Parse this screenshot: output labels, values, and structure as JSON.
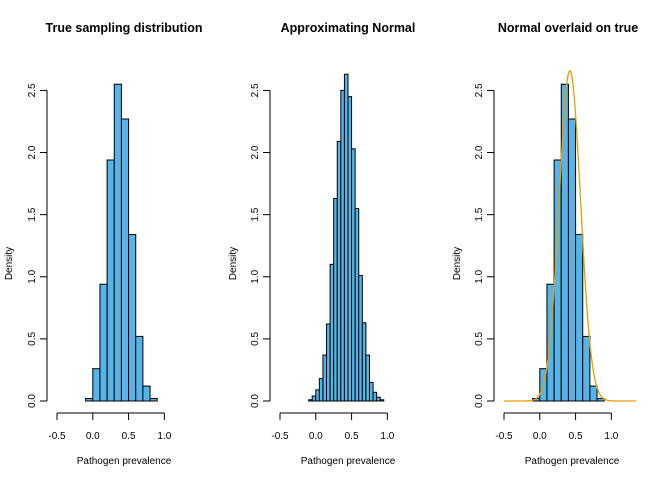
{
  "chart_data": [
    {
      "type": "bar",
      "title": "True sampling distribution",
      "xlabel": "Pathogen prevalence",
      "ylabel": "Density",
      "xlim": [
        -0.5,
        1.4
      ],
      "ylim": [
        0,
        2.6
      ],
      "xticks": [
        -0.5,
        0.0,
        0.5,
        1.0
      ],
      "xtick_labels": [
        "-0.5",
        "0.0",
        "0.5",
        "1.0"
      ],
      "yticks": [
        0.0,
        0.5,
        1.0,
        1.5,
        2.0,
        2.5
      ],
      "ytick_labels": [
        "0.0",
        "0.5",
        "1.0",
        "1.5",
        "2.0",
        "2.5"
      ],
      "grid": false,
      "bar_color": "#56B4E9",
      "bins": [
        {
          "x0": -0.1,
          "x1": 0.0,
          "density": 0.02
        },
        {
          "x0": 0.0,
          "x1": 0.1,
          "density": 0.26
        },
        {
          "x0": 0.1,
          "x1": 0.2,
          "density": 0.94
        },
        {
          "x0": 0.2,
          "x1": 0.3,
          "density": 1.94
        },
        {
          "x0": 0.3,
          "x1": 0.4,
          "density": 2.55
        },
        {
          "x0": 0.4,
          "x1": 0.5,
          "density": 2.27
        },
        {
          "x0": 0.5,
          "x1": 0.6,
          "density": 1.34
        },
        {
          "x0": 0.6,
          "x1": 0.7,
          "density": 0.52
        },
        {
          "x0": 0.7,
          "x1": 0.8,
          "density": 0.12
        },
        {
          "x0": 0.8,
          "x1": 0.9,
          "density": 0.02
        }
      ]
    },
    {
      "type": "bar",
      "title": "Approximating Normal",
      "xlabel": "Pathogen prevalence",
      "ylabel": "Density",
      "xlim": [
        -0.5,
        1.4
      ],
      "ylim": [
        0,
        2.6
      ],
      "xticks": [
        -0.5,
        0.0,
        0.5,
        1.0
      ],
      "xtick_labels": [
        "-0.5",
        "0.0",
        "0.5",
        "1.0"
      ],
      "yticks": [
        0.0,
        0.5,
        1.0,
        1.5,
        2.0,
        2.5
      ],
      "ytick_labels": [
        "0.0",
        "0.5",
        "1.0",
        "1.5",
        "2.0",
        "2.5"
      ],
      "grid": false,
      "bar_color": "#56B4E9",
      "bins": [
        {
          "x0": -0.1,
          "x1": -0.05,
          "density": 0.01
        },
        {
          "x0": -0.05,
          "x1": 0.0,
          "density": 0.04
        },
        {
          "x0": 0.0,
          "x1": 0.05,
          "density": 0.09
        },
        {
          "x0": 0.05,
          "x1": 0.1,
          "density": 0.18
        },
        {
          "x0": 0.1,
          "x1": 0.15,
          "density": 0.37
        },
        {
          "x0": 0.15,
          "x1": 0.2,
          "density": 0.62
        },
        {
          "x0": 0.2,
          "x1": 0.25,
          "density": 1.1
        },
        {
          "x0": 0.25,
          "x1": 0.3,
          "density": 1.63
        },
        {
          "x0": 0.3,
          "x1": 0.35,
          "density": 2.09
        },
        {
          "x0": 0.35,
          "x1": 0.4,
          "density": 2.5
        },
        {
          "x0": 0.4,
          "x1": 0.45,
          "density": 2.63
        },
        {
          "x0": 0.45,
          "x1": 0.5,
          "density": 2.45
        },
        {
          "x0": 0.5,
          "x1": 0.55,
          "density": 2.03
        },
        {
          "x0": 0.55,
          "x1": 0.6,
          "density": 1.55
        },
        {
          "x0": 0.6,
          "x1": 0.65,
          "density": 1.01
        },
        {
          "x0": 0.65,
          "x1": 0.7,
          "density": 0.63
        },
        {
          "x0": 0.7,
          "x1": 0.75,
          "density": 0.37
        },
        {
          "x0": 0.75,
          "x1": 0.8,
          "density": 0.15
        },
        {
          "x0": 0.8,
          "x1": 0.85,
          "density": 0.07
        },
        {
          "x0": 0.85,
          "x1": 0.9,
          "density": 0.03
        },
        {
          "x0": 0.9,
          "x1": 0.95,
          "density": 0.01
        }
      ]
    },
    {
      "type": "bar",
      "title": "Normal overlaid on true",
      "xlabel": "Pathogen prevalence",
      "ylabel": "Density",
      "xlim": [
        -0.5,
        1.4
      ],
      "ylim": [
        0,
        2.6
      ],
      "xticks": [
        -0.5,
        0.0,
        0.5,
        1.0
      ],
      "xtick_labels": [
        "-0.5",
        "0.0",
        "0.5",
        "1.0"
      ],
      "yticks": [
        0.0,
        0.5,
        1.0,
        1.5,
        2.0,
        2.5
      ],
      "ytick_labels": [
        "0.0",
        "0.5",
        "1.0",
        "1.5",
        "2.0",
        "2.5"
      ],
      "grid": false,
      "bar_color": "#56B4E9",
      "curve_color": "#E69F00",
      "curve": {
        "mean": 0.42,
        "sd": 0.15,
        "x_from": -0.5,
        "x_to": 1.35
      },
      "bins": [
        {
          "x0": -0.1,
          "x1": 0.0,
          "density": 0.02
        },
        {
          "x0": 0.0,
          "x1": 0.1,
          "density": 0.26
        },
        {
          "x0": 0.1,
          "x1": 0.2,
          "density": 0.94
        },
        {
          "x0": 0.2,
          "x1": 0.3,
          "density": 1.94
        },
        {
          "x0": 0.3,
          "x1": 0.4,
          "density": 2.55
        },
        {
          "x0": 0.4,
          "x1": 0.5,
          "density": 2.27
        },
        {
          "x0": 0.5,
          "x1": 0.6,
          "density": 1.34
        },
        {
          "x0": 0.6,
          "x1": 0.7,
          "density": 0.52
        },
        {
          "x0": 0.7,
          "x1": 0.8,
          "density": 0.12
        },
        {
          "x0": 0.8,
          "x1": 0.9,
          "density": 0.02
        }
      ]
    }
  ]
}
